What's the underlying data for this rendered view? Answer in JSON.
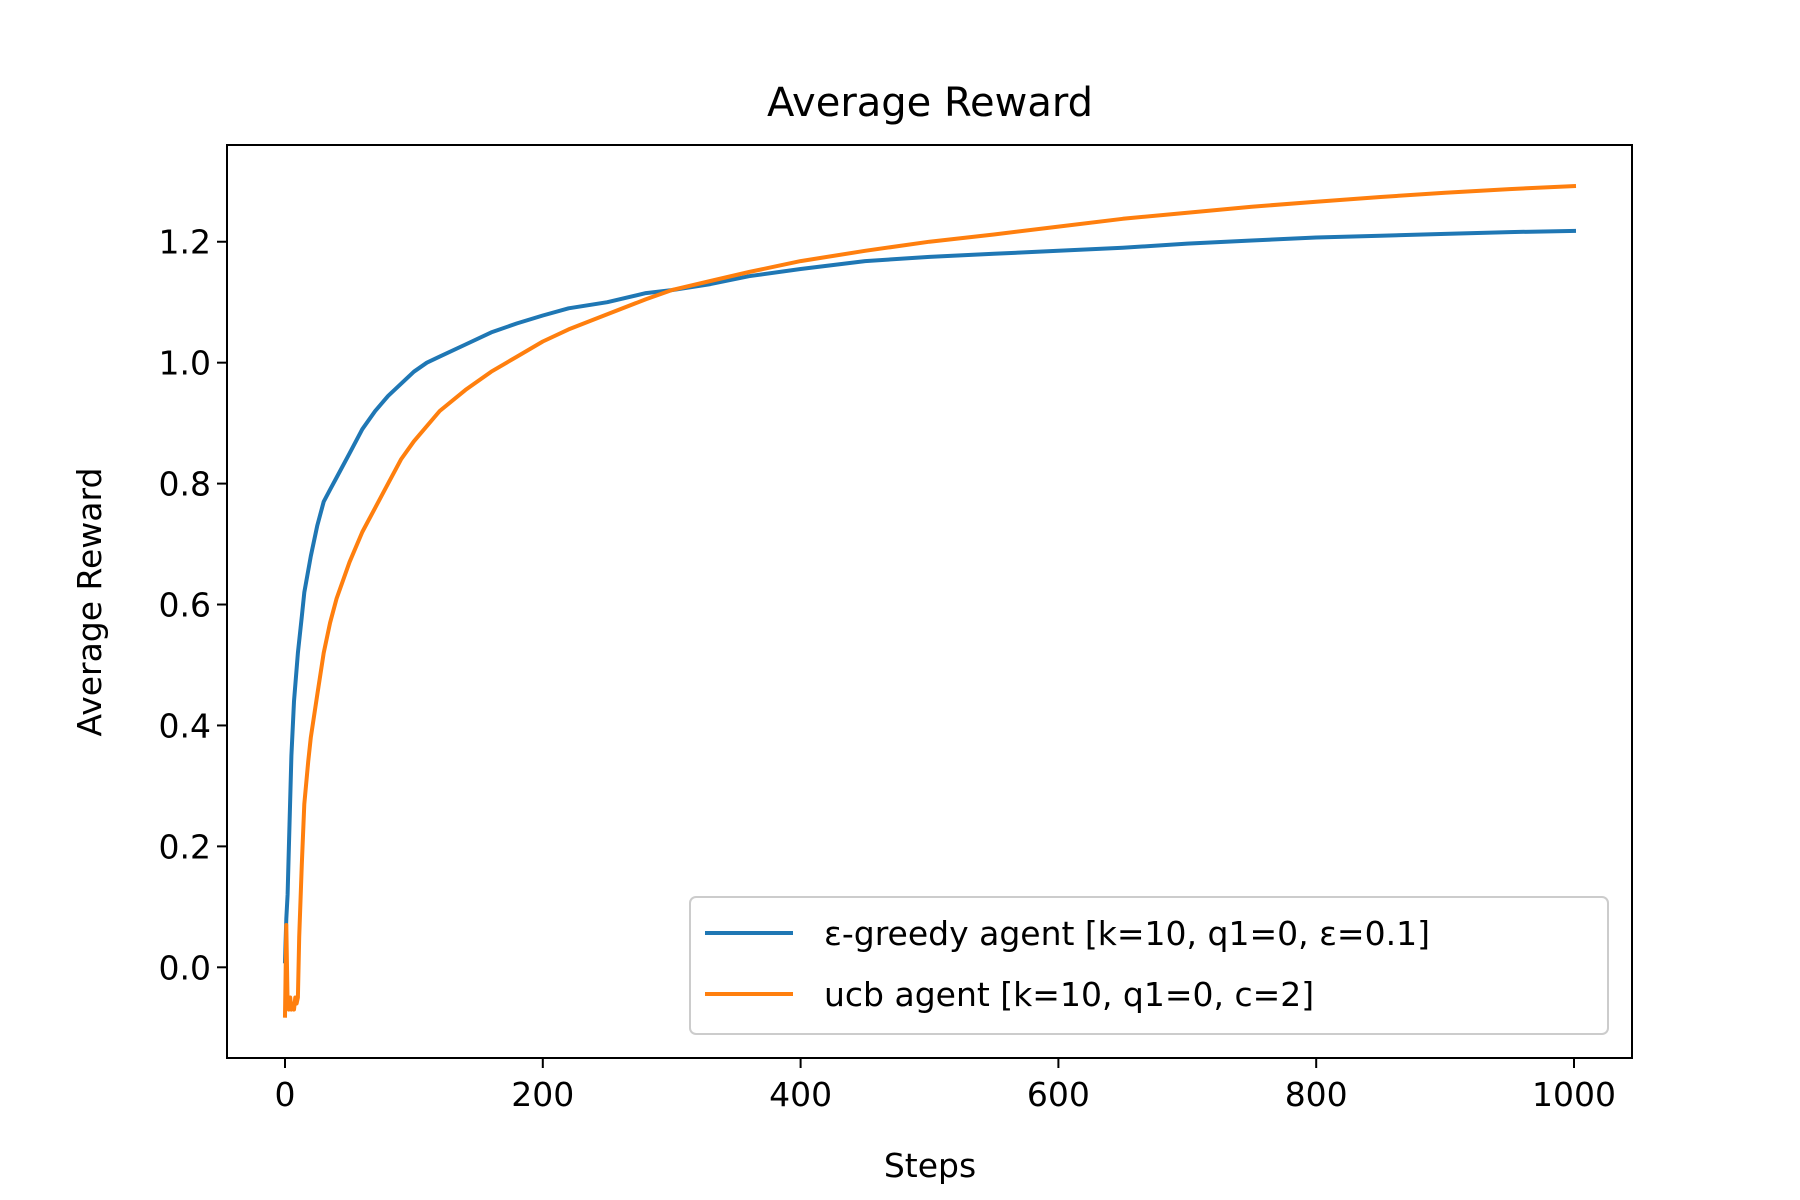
{
  "chart_data": {
    "type": "line",
    "title": "Average Reward",
    "xlabel": "Steps",
    "ylabel": "Average Reward",
    "xlim": [
      -45,
      1045
    ],
    "ylim": [
      -0.15,
      1.36
    ],
    "xticks": [
      0,
      200,
      400,
      600,
      800,
      1000
    ],
    "yticks": [
      0.0,
      0.2,
      0.4,
      0.6,
      0.8,
      1.0,
      1.2
    ],
    "xtick_labels": [
      "0",
      "200",
      "400",
      "600",
      "800",
      "1000"
    ],
    "ytick_labels": [
      "0.0",
      "0.2",
      "0.4",
      "0.6",
      "0.8",
      "1.0",
      "1.2"
    ],
    "grid": false,
    "legend_position": "lower-right",
    "series": [
      {
        "name": "ε-greedy agent [k=10, q1=0, ε=0.1]",
        "color": "#1f77b4",
        "x": [
          0,
          1,
          2,
          3,
          5,
          7,
          10,
          13,
          15,
          20,
          25,
          30,
          35,
          40,
          50,
          60,
          70,
          80,
          90,
          100,
          110,
          120,
          140,
          160,
          180,
          200,
          220,
          250,
          280,
          300,
          330,
          360,
          400,
          450,
          500,
          550,
          600,
          650,
          700,
          750,
          800,
          850,
          900,
          950,
          1000
        ],
        "y": [
          0.01,
          0.08,
          0.12,
          0.2,
          0.35,
          0.44,
          0.52,
          0.58,
          0.62,
          0.68,
          0.73,
          0.77,
          0.79,
          0.81,
          0.85,
          0.89,
          0.92,
          0.945,
          0.965,
          0.985,
          1.0,
          1.01,
          1.03,
          1.05,
          1.065,
          1.078,
          1.09,
          1.1,
          1.115,
          1.12,
          1.13,
          1.143,
          1.155,
          1.168,
          1.175,
          1.18,
          1.185,
          1.19,
          1.197,
          1.202,
          1.207,
          1.21,
          1.213,
          1.216,
          1.218
        ]
      },
      {
        "name": "ucb agent [k=10, q1=0, c=2]",
        "color": "#ff7f0e",
        "x": [
          0,
          1,
          2,
          3,
          4,
          5,
          6,
          7,
          8,
          9,
          10,
          11,
          13,
          15,
          18,
          20,
          25,
          30,
          35,
          40,
          50,
          60,
          70,
          80,
          90,
          100,
          120,
          140,
          160,
          180,
          200,
          220,
          250,
          280,
          300,
          330,
          360,
          400,
          450,
          500,
          550,
          600,
          650,
          700,
          750,
          800,
          850,
          900,
          950,
          1000
        ],
        "y": [
          -0.08,
          0.07,
          -0.06,
          -0.07,
          -0.05,
          -0.07,
          -0.06,
          -0.07,
          -0.05,
          -0.06,
          -0.05,
          0.05,
          0.17,
          0.27,
          0.34,
          0.38,
          0.45,
          0.52,
          0.57,
          0.61,
          0.67,
          0.72,
          0.76,
          0.8,
          0.84,
          0.87,
          0.92,
          0.955,
          0.985,
          1.01,
          1.035,
          1.055,
          1.08,
          1.105,
          1.12,
          1.135,
          1.15,
          1.168,
          1.185,
          1.2,
          1.212,
          1.225,
          1.238,
          1.248,
          1.258,
          1.266,
          1.274,
          1.281,
          1.287,
          1.292
        ]
      }
    ]
  }
}
